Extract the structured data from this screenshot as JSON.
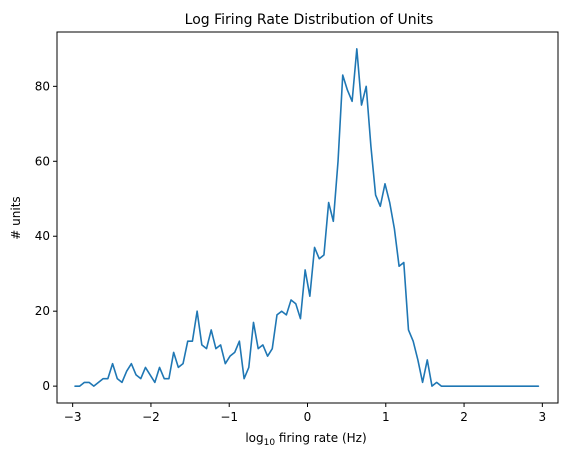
{
  "chart_data": {
    "type": "line",
    "title": "Log Firing Rate Distribution of Units",
    "xlabel_main": "log",
    "xlabel_sub": "10",
    "xlabel_rest": " firing rate (Hz)",
    "ylabel": "# units",
    "xlim": [
      -3.2,
      3.2
    ],
    "ylim": [
      -4.5,
      94.5
    ],
    "xticks": [
      -3,
      -2,
      -1,
      0,
      1,
      2,
      3
    ],
    "yticks": [
      0,
      20,
      40,
      60,
      80
    ],
    "grid": false,
    "series": [
      {
        "color": "#1f77b4",
        "x": [
          -2.97,
          -2.91,
          -2.85,
          -2.79,
          -2.73,
          -2.67,
          -2.61,
          -2.55,
          -2.49,
          -2.43,
          -2.37,
          -2.31,
          -2.25,
          -2.19,
          -2.13,
          -2.07,
          -2.01,
          -1.95,
          -1.89,
          -1.83,
          -1.77,
          -1.71,
          -1.65,
          -1.59,
          -1.53,
          -1.47,
          -1.41,
          -1.35,
          -1.29,
          -1.23,
          -1.17,
          -1.11,
          -1.05,
          -0.99,
          -0.93,
          -0.87,
          -0.81,
          -0.75,
          -0.69,
          -0.63,
          -0.57,
          -0.51,
          -0.45,
          -0.39,
          -0.33,
          -0.27,
          -0.21,
          -0.15,
          -0.09,
          -0.03,
          0.03,
          0.09,
          0.15,
          0.21,
          0.27,
          0.33,
          0.39,
          0.45,
          0.51,
          0.57,
          0.63,
          0.69,
          0.75,
          0.81,
          0.87,
          0.93,
          0.99,
          1.05,
          1.11,
          1.17,
          1.23,
          1.29,
          1.35,
          1.41,
          1.47,
          1.53,
          1.59,
          1.65,
          1.71,
          1.77,
          1.83,
          1.89,
          1.95,
          2.01,
          2.07,
          2.13,
          2.19,
          2.25,
          2.31,
          2.37,
          2.43,
          2.49,
          2.55,
          2.61,
          2.67,
          2.73,
          2.79,
          2.85,
          2.91,
          2.95
        ],
        "y": [
          0,
          0,
          1,
          1,
          0,
          1,
          2,
          2,
          6,
          2,
          1,
          4,
          6,
          3,
          2,
          5,
          3,
          1,
          5,
          2,
          2,
          9,
          5,
          6,
          12,
          12,
          20,
          11,
          10,
          15,
          10,
          11,
          6,
          8,
          9,
          12,
          2,
          5,
          17,
          10,
          11,
          8,
          10,
          19,
          20,
          19,
          23,
          22,
          18,
          31,
          24,
          37,
          34,
          35,
          49,
          44,
          60,
          83,
          79,
          76,
          90,
          75,
          80,
          64,
          51,
          48,
          54,
          49,
          42,
          32,
          33,
          15,
          12,
          7,
          1,
          7,
          0,
          1,
          0,
          0,
          0,
          0,
          0,
          0,
          0,
          0,
          0,
          0,
          0,
          0,
          0,
          0,
          0,
          0,
          0,
          0,
          0,
          0,
          0,
          0
        ]
      }
    ]
  }
}
